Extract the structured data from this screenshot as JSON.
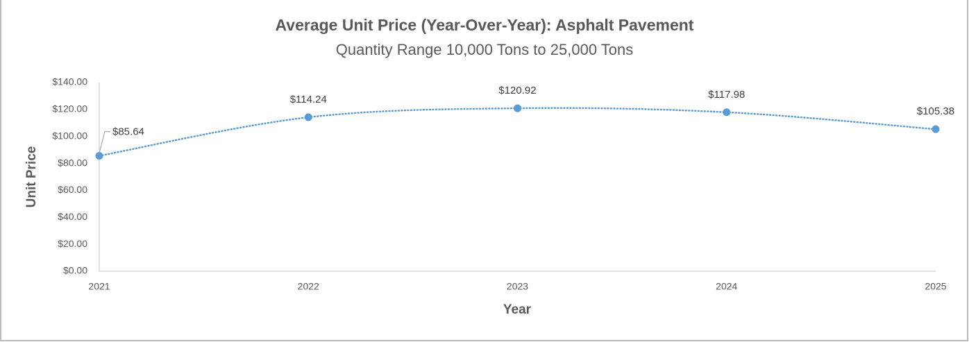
{
  "chart_data": {
    "type": "line",
    "title": "Average Unit Price (Year-Over-Year): Asphalt Pavement",
    "subtitle": "Quantity Range 10,000 Tons to 25,000 Tons",
    "x_label": "Year",
    "y_label": "Unit Price",
    "categories": [
      "2021",
      "2022",
      "2023",
      "2024",
      "2025"
    ],
    "values": [
      85.64,
      114.24,
      120.92,
      117.98,
      105.38
    ],
    "value_labels": [
      "$85.64",
      "$114.24",
      "$120.92",
      "$117.98",
      "$105.38"
    ],
    "color": "#5b9bd5",
    "ylim": [
      0,
      140
    ],
    "yticks": [
      {
        "value": 0,
        "label": "$0.00"
      },
      {
        "value": 20,
        "label": "$20.00"
      },
      {
        "value": 40,
        "label": "$40.00"
      },
      {
        "value": 60,
        "label": "$60.00"
      },
      {
        "value": 80,
        "label": "$80.00"
      },
      {
        "value": 100,
        "label": "$100.00"
      },
      {
        "value": 120,
        "label": "$120.00"
      },
      {
        "value": 140,
        "label": "$140.00"
      }
    ],
    "grid": false
  }
}
